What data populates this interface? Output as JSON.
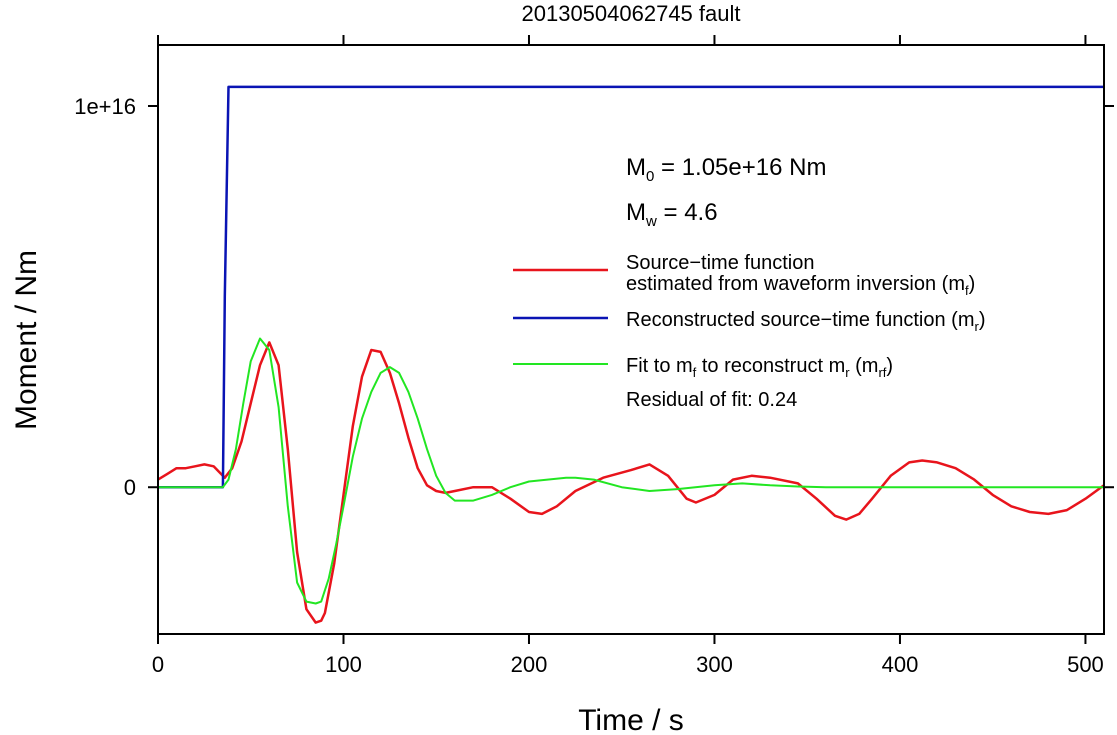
{
  "chart_data": {
    "type": "line",
    "title": "20130504062745 fault",
    "xlabel": "Time / s",
    "ylabel": "Moment / Nm",
    "xlim": [
      0,
      510
    ],
    "ylim": [
      -3850000000000000.0,
      1.16e+16
    ],
    "x_ticks": [
      0,
      100,
      200,
      300,
      400,
      500
    ],
    "x_tick_labels": [
      "0",
      "100",
      "200",
      "300",
      "400",
      "500"
    ],
    "y_ticks": [
      0,
      1e+16
    ],
    "y_tick_labels": [
      "0",
      "1e+16"
    ],
    "annotations": {
      "m0": {
        "sym": "M",
        "sub": "0",
        "text": " = 1.05e+16 Nm"
      },
      "mw": {
        "sym": "M",
        "sub": "w",
        "text": " = 4.6"
      },
      "residual": "Residual of fit: 0.24"
    },
    "legend_position": "right",
    "legend": {
      "red_line1": "Source−time function",
      "red_line2_pre": "estimated from waveform inversion (m",
      "red_line2_sub": "f",
      "red_line2_post": ")",
      "blue_pre": "Reconstructed source−time function (m",
      "blue_sub": "r",
      "blue_post": ")",
      "green_pre1": "Fit to m",
      "green_sub1": "f",
      "green_mid": " to reconstruct m",
      "green_sub2": "r",
      "green_mid2": " (m",
      "green_sub3": "rf",
      "green_post": ")"
    },
    "series": [
      {
        "color": "#e8141c",
        "x": [
          0,
          5,
          10,
          15,
          20,
          25,
          30,
          33,
          36,
          40,
          45,
          50,
          55,
          60,
          65,
          70,
          75,
          80,
          85,
          88,
          90,
          95,
          100,
          105,
          110,
          115,
          120,
          125,
          130,
          135,
          140,
          145,
          150,
          155,
          160,
          170,
          180,
          190,
          200,
          207,
          215,
          225,
          240,
          255,
          265,
          275,
          285,
          290,
          300,
          310,
          320,
          330,
          345,
          355,
          365,
          371,
          378,
          385,
          395,
          405,
          412,
          420,
          430,
          440,
          450,
          460,
          470,
          480,
          490,
          500,
          510
        ],
        "y": [
          200000000000000.0,
          350000000000000.0,
          500000000000000.0,
          500000000000000.0,
          550000000000000.0,
          600000000000000.0,
          550000000000000.0,
          400000000000000.0,
          250000000000000.0,
          500000000000000.0,
          1200000000000000.0,
          2200000000000000.0,
          3200000000000000.0,
          3800000000000000.0,
          3200000000000000.0,
          1000000000000000.0,
          -1700000000000000.0,
          -3200000000000000.0,
          -3550000000000000.0,
          -3500000000000000.0,
          -3300000000000000.0,
          -2000000000000000.0,
          -200000000000000.0,
          1600000000000000.0,
          2900000000000000.0,
          3600000000000000.0,
          3550000000000000.0,
          3000000000000000.0,
          2200000000000000.0,
          1300000000000000.0,
          500000000000000.0,
          50000000000000.0,
          -100000000000000.0,
          -150000000000000.0,
          -100000000000000.0,
          0.0,
          0.0,
          -300000000000000.0,
          -650000000000000.0,
          -700000000000000.0,
          -500000000000000.0,
          -100000000000000.0,
          250000000000000.0,
          450000000000000.0,
          600000000000000.0,
          300000000000000.0,
          -300000000000000.0,
          -400000000000000.0,
          -200000000000000.0,
          200000000000000.0,
          300000000000000.0,
          250000000000000.0,
          100000000000000.0,
          -300000000000000.0,
          -750000000000000.0,
          -850000000000000.0,
          -700000000000000.0,
          -300000000000000.0,
          300000000000000.0,
          650000000000000.0,
          700000000000000.0,
          650000000000000.0,
          500000000000000.0,
          200000000000000.0,
          -200000000000000.0,
          -500000000000000.0,
          -650000000000000.0,
          -700000000000000.0,
          -600000000000000.0,
          -300000000000000.0,
          50000000000000.0
        ]
      },
      {
        "color": "#0a14b4",
        "x": [
          0,
          35,
          36,
          38,
          39,
          510
        ],
        "y": [
          0,
          0,
          5000000000000000.0,
          1.05e+16,
          1.05e+16,
          1.05e+16
        ]
      },
      {
        "color": "#22e622",
        "x": [
          0,
          35,
          38,
          42,
          46,
          50,
          55,
          60,
          65,
          70,
          75,
          80,
          85,
          88,
          92,
          96,
          100,
          105,
          110,
          115,
          120,
          125,
          130,
          135,
          140,
          145,
          150,
          155,
          160,
          170,
          180,
          190,
          200,
          210,
          220,
          225,
          235,
          250,
          265,
          280,
          300,
          315,
          330,
          345,
          360,
          380,
          400,
          450,
          510
        ],
        "y": [
          0,
          0,
          200000000000000.0,
          1000000000000000.0,
          2200000000000000.0,
          3300000000000000.0,
          3900000000000000.0,
          3600000000000000.0,
          2100000000000000.0,
          -500000000000000.0,
          -2500000000000000.0,
          -3000000000000000.0,
          -3050000000000000.0,
          -3000000000000000.0,
          -2400000000000000.0,
          -1500000000000000.0,
          -500000000000000.0,
          800000000000000.0,
          1800000000000000.0,
          2500000000000000.0,
          3000000000000000.0,
          3150000000000000.0,
          3000000000000000.0,
          2500000000000000.0,
          1800000000000000.0,
          1000000000000000.0,
          300000000000000.0,
          -150000000000000.0,
          -350000000000000.0,
          -350000000000000.0,
          -200000000000000.0,
          0.0,
          150000000000000.0,
          200000000000000.0,
          250000000000000.0,
          250000000000000.0,
          200000000000000.0,
          0.0,
          -100000000000000.0,
          -50000000000000.0,
          50000000000000.0,
          100000000000000.0,
          50000000000000.0,
          20000000000000.0,
          0.0,
          0.0,
          0.0,
          0.0,
          0.0
        ]
      }
    ]
  }
}
